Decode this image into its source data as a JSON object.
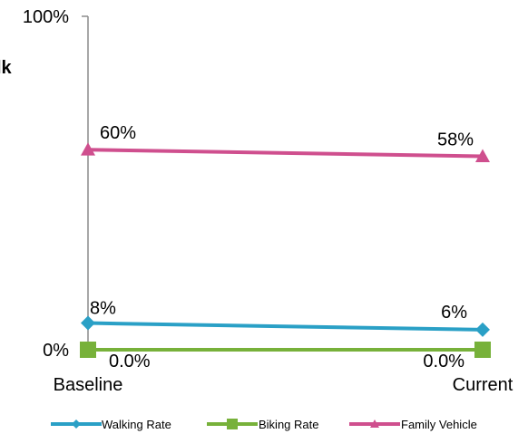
{
  "fragments": {
    "left_edge_text": "lk"
  },
  "chart_data": {
    "type": "line",
    "categories": [
      "Baseline",
      "Current"
    ],
    "ylim": [
      0,
      100
    ],
    "y_tick_labels": [
      "100%",
      "0%"
    ],
    "y_ticks": [
      100,
      0
    ],
    "grid": false,
    "legend_position": "bottom",
    "series": [
      {
        "name": "Walking Rate",
        "values": [
          8,
          6
        ],
        "labels": [
          "8%",
          "6%"
        ],
        "color": "#2aa0c6",
        "marker": "diamond"
      },
      {
        "name": "Biking Rate",
        "values": [
          0,
          0
        ],
        "labels": [
          "0.0%",
          "0.0%"
        ],
        "color": "#77b13a",
        "marker": "square"
      },
      {
        "name": "Family Vehicle",
        "values": [
          60,
          58
        ],
        "labels": [
          "60%",
          "58%"
        ],
        "color": "#cf4f8e",
        "marker": "triangle"
      }
    ]
  }
}
